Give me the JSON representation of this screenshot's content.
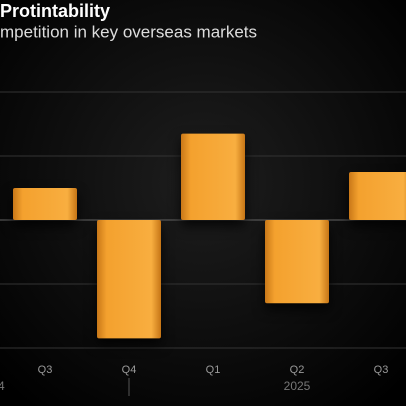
{
  "chart_data": {
    "type": "bar",
    "title": "Protintability",
    "subtitle": "mpetition in key overseas markets",
    "categories": [
      "Q3",
      "Q4",
      "Q1",
      "Q2",
      "Q3"
    ],
    "values": [
      0.5,
      -1.85,
      1.35,
      -1.3,
      0.75
    ],
    "years": [
      "4",
      "2025"
    ],
    "color": "#f4a12e",
    "ylim": [
      -2.3,
      2.1
    ],
    "yticks": [
      -2,
      -1,
      0,
      1,
      2
    ],
    "grid": true
  }
}
